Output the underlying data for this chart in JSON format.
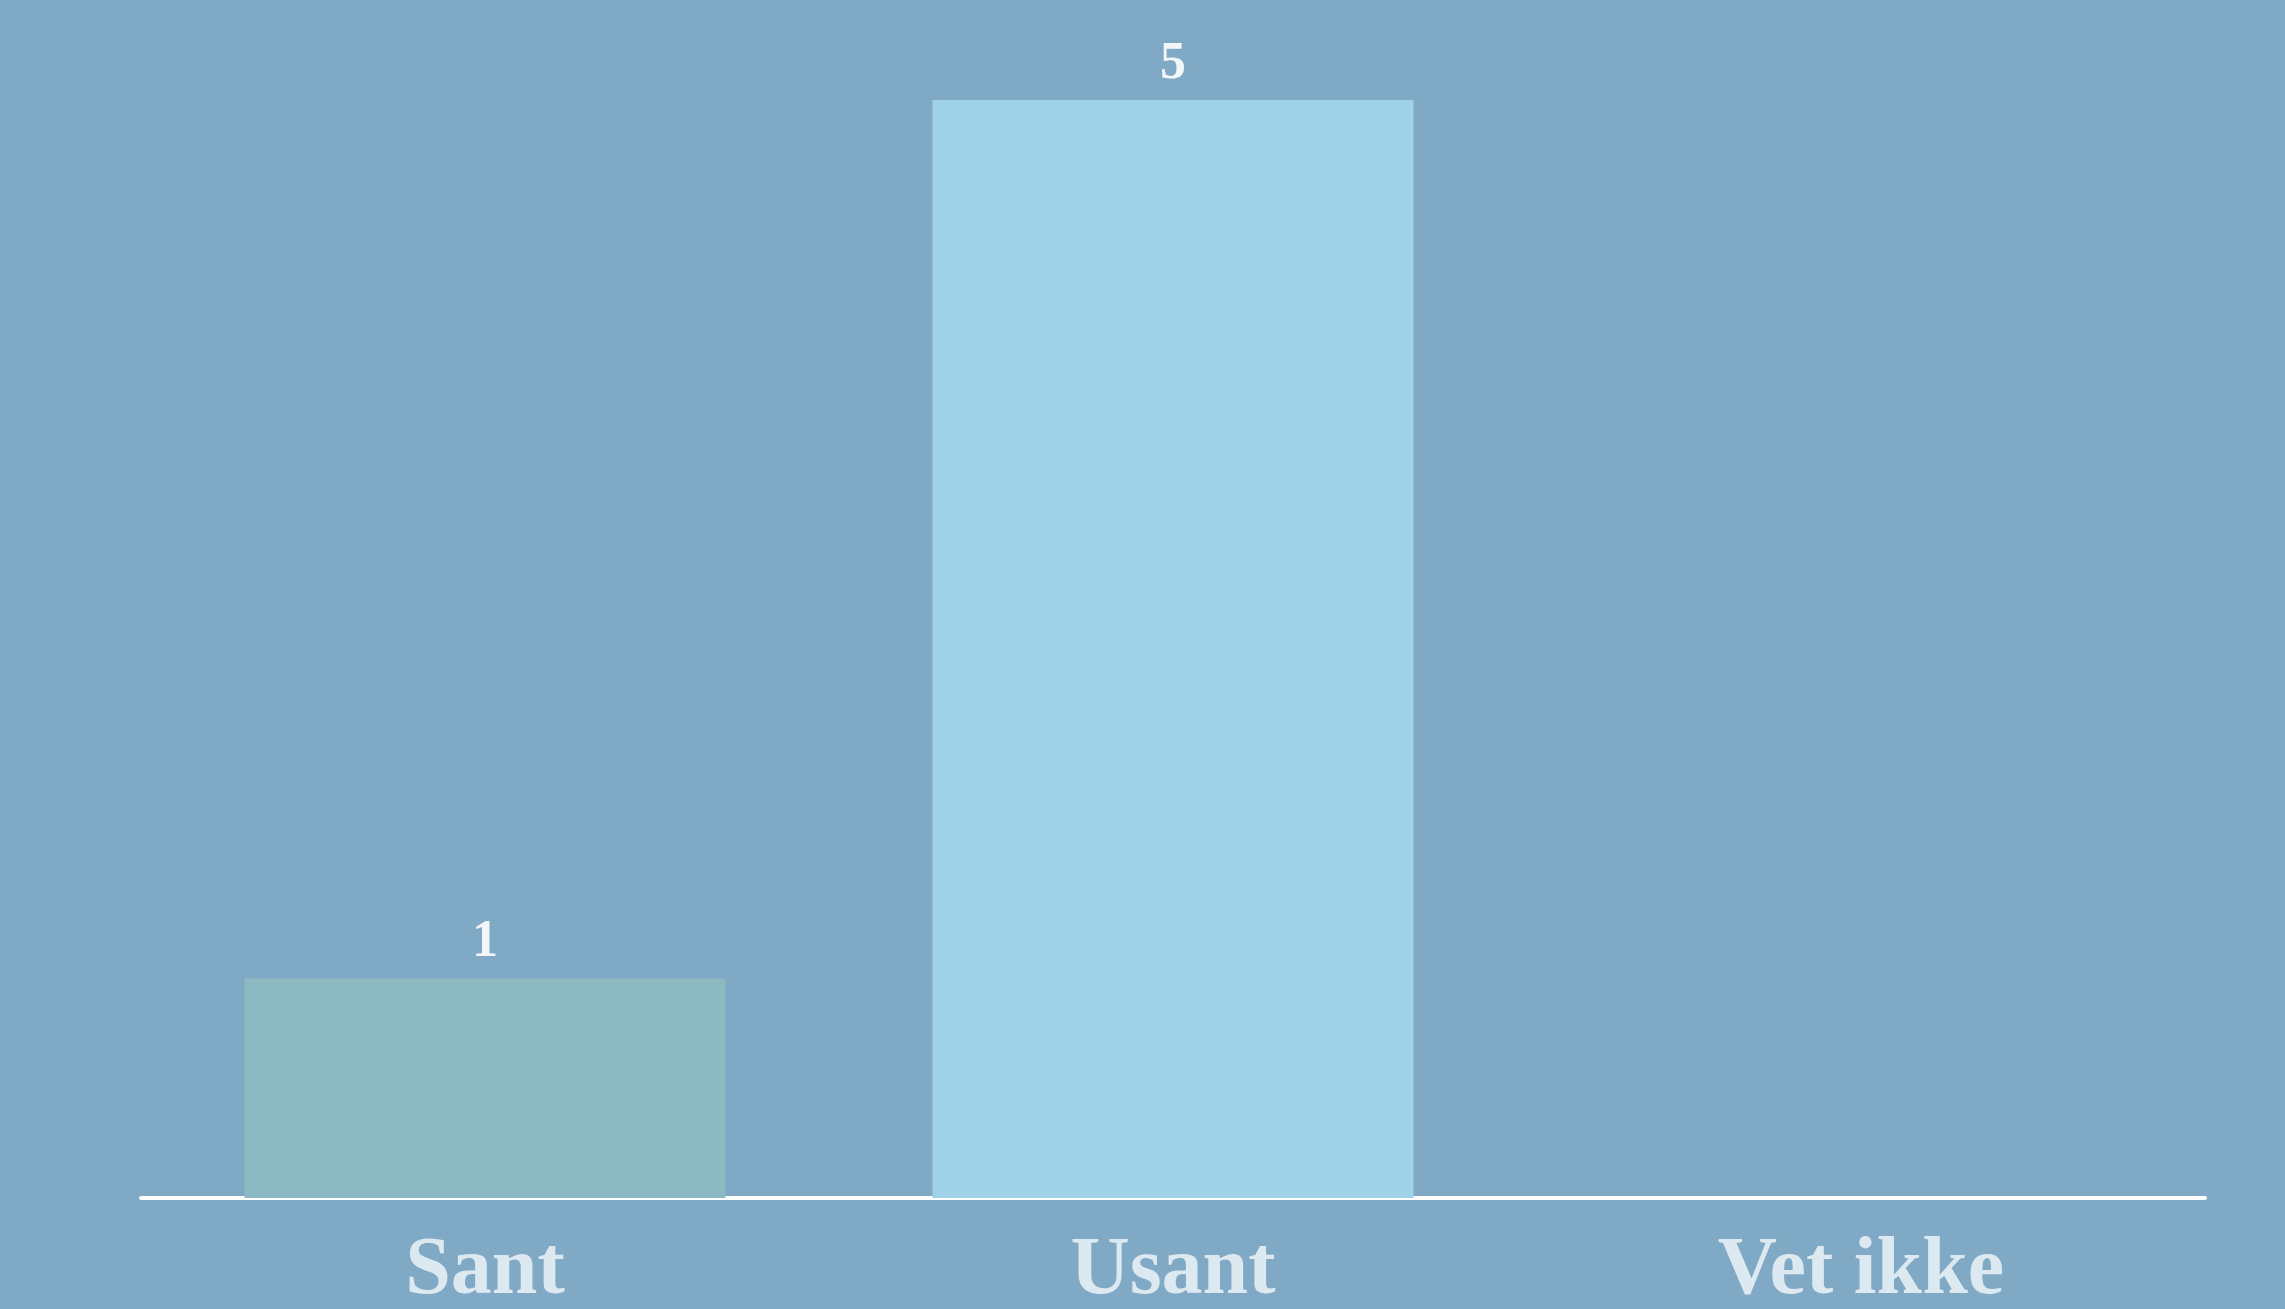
{
  "chart_data": {
    "type": "bar",
    "categories": [
      "Sant",
      "Usant",
      "Vet ikke"
    ],
    "values": [
      1,
      5,
      0
    ],
    "value_labels": [
      "1",
      "5",
      null
    ],
    "colors": [
      "#8dbac2",
      "#9fd2e6",
      "#9fd2e6"
    ]
  }
}
